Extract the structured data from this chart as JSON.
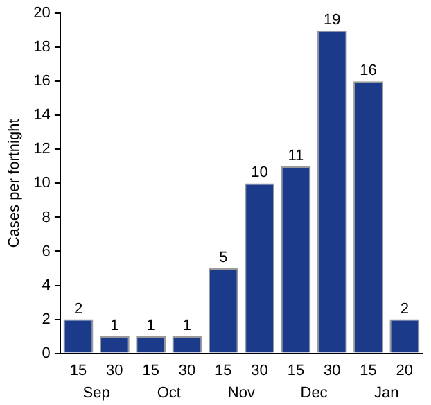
{
  "chart_data": {
    "type": "bar",
    "ylabel": "Cases per fortnight",
    "categories": [
      "15",
      "30",
      "15",
      "30",
      "15",
      "30",
      "15",
      "30",
      "15",
      "20"
    ],
    "values": [
      2,
      1,
      1,
      1,
      5,
      10,
      11,
      19,
      16,
      2
    ],
    "color": "#1c3a8a",
    "ylim": [
      0,
      20
    ],
    "yticks": [
      0,
      2,
      4,
      6,
      8,
      10,
      12,
      14,
      16,
      18,
      20
    ],
    "grid": false,
    "legend": false,
    "data_labels": true,
    "annotations": [
      "Sep",
      "Oct",
      "Nov",
      "Dec",
      "Jan"
    ]
  }
}
